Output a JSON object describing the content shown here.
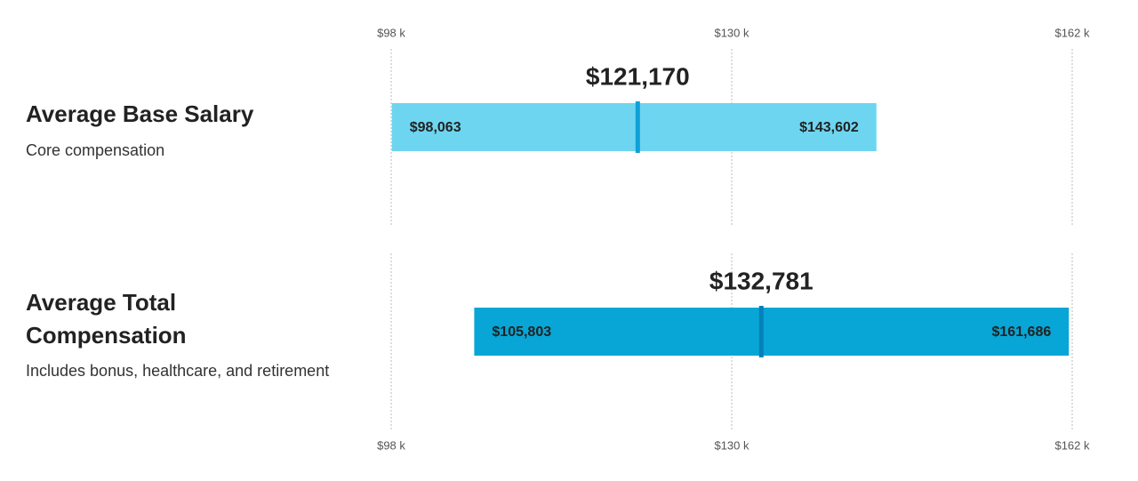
{
  "chart_data": {
    "type": "range",
    "xlim": [
      98000,
      162000
    ],
    "xticks": [
      {
        "value": 98000,
        "label": "$98 k"
      },
      {
        "value": 130000,
        "label": "$130 k"
      },
      {
        "value": 162000,
        "label": "$162 k"
      }
    ],
    "grid": true,
    "rows": [
      {
        "name": "Average Base Salary",
        "subtitle": "Core compensation",
        "values": [
          98063,
          121170,
          143602
        ],
        "value_labels": [
          "$98,063",
          "$121,170",
          "$143,602"
        ],
        "color": "#6dd5f0",
        "mean_color": "#0ea1d8"
      },
      {
        "name": "Average Total Compensation",
        "subtitle": "Includes bonus, healthcare, and retirement",
        "values": [
          105803,
          132781,
          161686
        ],
        "value_labels": [
          "$105,803",
          "$132,781",
          "$161,686"
        ],
        "color": "#07a6d6",
        "mean_color": "#0680b8"
      }
    ]
  }
}
